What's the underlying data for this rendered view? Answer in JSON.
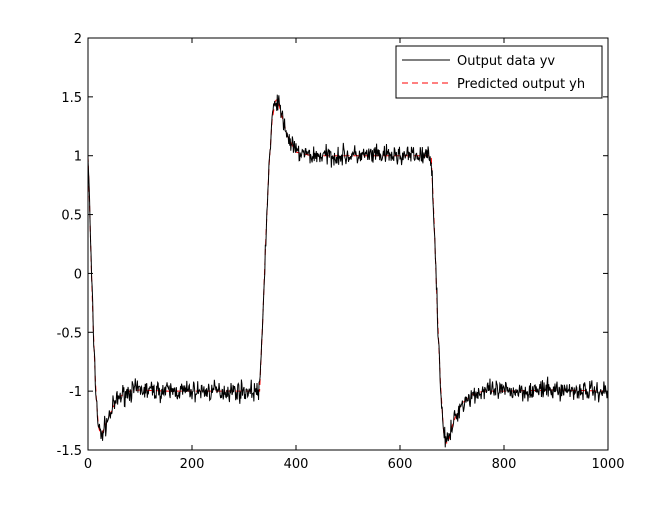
{
  "chart_data": {
    "type": "line",
    "title": "",
    "xlabel": "",
    "ylabel": "",
    "xlim": [
      0,
      1000
    ],
    "ylim": [
      -1.5,
      2
    ],
    "xticks": [
      0,
      200,
      400,
      600,
      800,
      1000
    ],
    "yticks": [
      -1.5,
      -1,
      -0.5,
      0,
      0.5,
      1,
      1.5,
      2
    ],
    "xtick_labels": [
      "0",
      "200",
      "400",
      "600",
      "800",
      "1000"
    ],
    "ytick_labels": [
      "-1.5",
      "-1",
      "-0.5",
      "0",
      "0.5",
      "1",
      "1.5",
      "2"
    ],
    "grid": false,
    "legend_position": "top-right",
    "x": [
      0,
      3,
      6,
      10,
      15,
      20,
      25,
      30,
      40,
      50,
      60,
      80,
      100,
      150,
      200,
      250,
      300,
      330,
      336,
      342,
      348,
      354,
      360,
      363,
      368,
      375,
      385,
      400,
      430,
      500,
      600,
      660,
      666,
      672,
      678,
      684,
      690,
      695,
      700,
      710,
      720,
      740,
      760,
      800,
      900,
      1000
    ],
    "series": [
      {
        "name": "Output data yv",
        "color": "#000000",
        "dash": "solid",
        "noisy": true,
        "noise_amplitude": 0.06,
        "values": [
          1.0,
          0.6,
          0.1,
          -0.45,
          -1.0,
          -1.3,
          -1.38,
          -1.33,
          -1.22,
          -1.12,
          -1.05,
          -1.0,
          -0.99,
          -1.0,
          -1.0,
          -1.0,
          -1.0,
          -1.0,
          -0.4,
          0.3,
          0.9,
          1.3,
          1.46,
          1.48,
          1.42,
          1.3,
          1.15,
          1.03,
          1.0,
          1.0,
          1.0,
          1.0,
          0.4,
          -0.35,
          -0.95,
          -1.35,
          -1.44,
          -1.4,
          -1.3,
          -1.18,
          -1.1,
          -1.03,
          -1.0,
          -1.0,
          -0.99,
          -1.0
        ]
      },
      {
        "name": "Predicted output yh",
        "color": "#ff0000",
        "dash": "dashed",
        "noisy": false,
        "noise_amplitude": 0,
        "values": [
          1.0,
          0.6,
          0.1,
          -0.45,
          -1.0,
          -1.3,
          -1.38,
          -1.33,
          -1.22,
          -1.12,
          -1.05,
          -1.0,
          -0.99,
          -1.0,
          -1.0,
          -1.0,
          -1.0,
          -1.0,
          -0.4,
          0.3,
          0.9,
          1.3,
          1.46,
          1.48,
          1.42,
          1.3,
          1.15,
          1.03,
          1.0,
          1.0,
          1.0,
          1.0,
          0.4,
          -0.35,
          -0.95,
          -1.35,
          -1.44,
          -1.4,
          -1.3,
          -1.18,
          -1.1,
          -1.03,
          -1.0,
          -1.0,
          -0.99,
          -1.0
        ]
      }
    ]
  }
}
